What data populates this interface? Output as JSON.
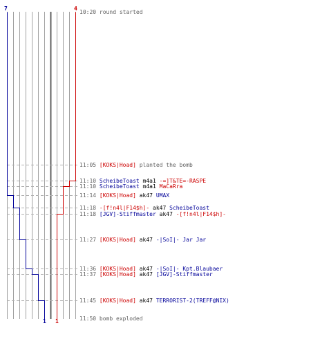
{
  "colors": {
    "team_blue": "#000099",
    "team_red": "#cc0000",
    "grid": "#a0a0a0",
    "dashed": "#b0b0b0",
    "text_muted": "#606060"
  },
  "players": {
    "blue_start": "7",
    "red_start": "4",
    "blue_end": "1",
    "red_end": "1"
  },
  "events": [
    {
      "time": "10:20",
      "parts": [
        {
          "text": "round started",
          "style": "plain"
        }
      ]
    },
    {
      "time": "11:05",
      "parts": [
        {
          "text": "[KOKS|Hoad]",
          "style": "red"
        },
        {
          "text": "planted the bomb",
          "style": "plain"
        }
      ]
    },
    {
      "time": "11:10",
      "parts": [
        {
          "text": "ScheibeToast",
          "style": "blue"
        },
        {
          "text": "m4a1",
          "style": "weapon"
        },
        {
          "text": "-=]T&TE=-RASPE",
          "style": "red"
        }
      ]
    },
    {
      "time": "11:10",
      "parts": [
        {
          "text": "ScheibeToast",
          "style": "blue"
        },
        {
          "text": "m4a1",
          "style": "weapon"
        },
        {
          "text": "MaCaRra",
          "style": "red"
        }
      ]
    },
    {
      "time": "11:14",
      "parts": [
        {
          "text": "[KOKS|Hoad]",
          "style": "red"
        },
        {
          "text": "ak47",
          "style": "weapon"
        },
        {
          "text": "UMAX",
          "style": "blue"
        }
      ]
    },
    {
      "time": "11:18",
      "parts": [
        {
          "text": "-[f!n4l|F14$h]-",
          "style": "red"
        },
        {
          "text": "ak47",
          "style": "weapon"
        },
        {
          "text": "ScheibeToast",
          "style": "blue"
        }
      ]
    },
    {
      "time": "11:18",
      "parts": [
        {
          "text": "[JGV]-Stiffmaster",
          "style": "blue"
        },
        {
          "text": "ak47",
          "style": "weapon"
        },
        {
          "text": "-[f!n4l|F14$h]-",
          "style": "red"
        }
      ]
    },
    {
      "time": "11:27",
      "parts": [
        {
          "text": "[KOKS|Hoad]",
          "style": "red"
        },
        {
          "text": "ak47",
          "style": "weapon"
        },
        {
          "text": "-|SoI|- Jar Jar",
          "style": "blue"
        }
      ]
    },
    {
      "time": "11:36",
      "parts": [
        {
          "text": "[KOKS|Hoad]",
          "style": "red"
        },
        {
          "text": "ak47",
          "style": "weapon"
        },
        {
          "text": "-|SoI|- Kpt.Blaubaer",
          "style": "blue"
        }
      ]
    },
    {
      "time": "11:37",
      "parts": [
        {
          "text": "[KOKS|Hoad]",
          "style": "red"
        },
        {
          "text": "ak47",
          "style": "weapon"
        },
        {
          "text": "[JGV]-Stiffmaster",
          "style": "blue"
        }
      ]
    },
    {
      "time": "11:45",
      "parts": [
        {
          "text": "[KOKS|Hoad]",
          "style": "red"
        },
        {
          "text": "ak47",
          "style": "weapon"
        },
        {
          "text": "TERRORIST-2(TREFF@NIX)",
          "style": "blue"
        }
      ]
    },
    {
      "time": "11:50",
      "parts": [
        {
          "text": "bomb exploded",
          "style": "plain"
        }
      ]
    }
  ]
}
